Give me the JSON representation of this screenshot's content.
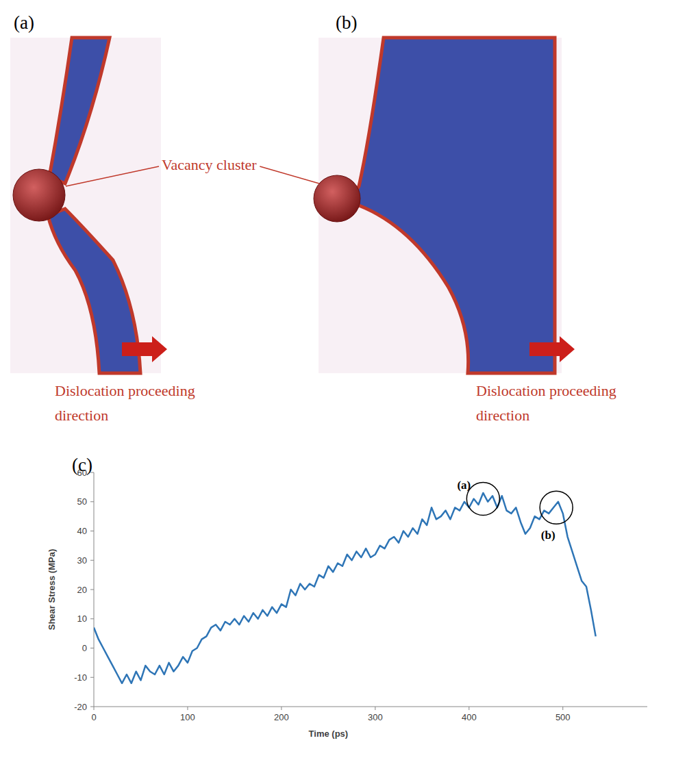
{
  "figure": {
    "panel_labels": [
      "(a)",
      "(b)",
      "(c)"
    ],
    "callout": "Vacancy cluster",
    "direction_labels": [
      "Dislocation proceeding direction",
      "Dislocation proceeding direction"
    ]
  },
  "chart_data": {
    "type": "line",
    "x_label": "Time (ps)",
    "y_label": "Shear Stress (MPa)",
    "xlim": [
      0,
      590
    ],
    "ylim": [
      -20,
      60
    ],
    "xticks": [
      0,
      100,
      200,
      300,
      400,
      500
    ],
    "yticks": [
      -20,
      -10,
      0,
      10,
      20,
      30,
      40,
      50,
      60
    ],
    "grid": false,
    "color": "#2e75b6",
    "x": [
      0,
      5,
      10,
      15,
      20,
      25,
      30,
      35,
      40,
      45,
      50,
      55,
      60,
      65,
      70,
      75,
      80,
      85,
      90,
      95,
      100,
      105,
      110,
      115,
      120,
      125,
      130,
      135,
      140,
      145,
      150,
      155,
      160,
      165,
      170,
      175,
      180,
      185,
      190,
      195,
      200,
      205,
      210,
      215,
      220,
      225,
      230,
      235,
      240,
      245,
      250,
      255,
      260,
      265,
      270,
      275,
      280,
      285,
      290,
      295,
      300,
      305,
      310,
      315,
      320,
      325,
      330,
      335,
      340,
      345,
      350,
      355,
      360,
      365,
      370,
      375,
      380,
      385,
      390,
      395,
      400,
      405,
      410,
      415,
      420,
      425,
      430,
      435,
      440,
      445,
      450,
      455,
      460,
      465,
      470,
      475,
      480,
      485,
      490,
      495,
      500,
      505,
      510,
      515,
      520,
      525,
      530,
      535
    ],
    "values": [
      7,
      3,
      0,
      -3,
      -6,
      -9,
      -12,
      -9,
      -12,
      -8,
      -11,
      -6,
      -8,
      -9,
      -6,
      -9,
      -5,
      -8,
      -6,
      -3,
      -5,
      -1,
      0,
      3,
      4,
      7,
      8,
      6,
      9,
      8,
      10,
      8,
      11,
      9,
      12,
      10,
      13,
      11,
      14,
      12,
      15,
      14,
      20,
      18,
      22,
      20,
      22,
      21,
      25,
      24,
      28,
      26,
      29,
      28,
      32,
      30,
      33,
      31,
      34,
      31,
      32,
      35,
      34,
      37,
      38,
      36,
      40,
      38,
      41,
      39,
      44,
      42,
      48,
      44,
      45,
      47,
      44,
      48,
      47,
      50,
      48,
      51,
      49,
      53,
      50,
      52,
      48,
      52,
      47,
      46,
      48,
      43,
      39,
      41,
      45,
      44,
      47,
      46,
      48,
      50,
      46,
      38,
      33,
      28,
      23,
      21,
      13,
      4
    ],
    "annotations": [
      {
        "text": "(a)",
        "x": 415,
        "y": 51
      },
      {
        "text": "(b)",
        "x": 493,
        "y": 48
      }
    ]
  }
}
